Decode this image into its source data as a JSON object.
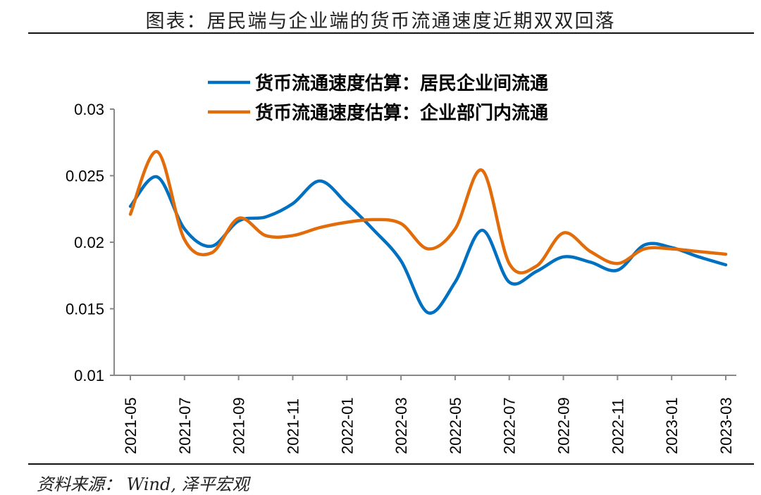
{
  "title": "图表：居民端与企业端的货币流通速度近期双双回落",
  "source": "资料来源：  Wind, 泽平宏观",
  "chart_data": {
    "type": "line",
    "title": "图表：居民端与企业端的货币流通速度近期双双回落",
    "xlabel": "",
    "ylabel": "",
    "x": [
      "2021-05",
      "2021-06",
      "2021-07",
      "2021-08",
      "2021-09",
      "2021-10",
      "2021-11",
      "2021-12",
      "2022-01",
      "2022-02",
      "2022-03",
      "2022-04",
      "2022-05",
      "2022-06",
      "2022-07",
      "2022-08",
      "2022-09",
      "2022-10",
      "2022-11",
      "2022-12",
      "2023-01",
      "2023-02",
      "2023-03"
    ],
    "x_tick_labels": [
      "2021-05",
      "2021-07",
      "2021-09",
      "2021-11",
      "2022-01",
      "2022-03",
      "2022-05",
      "2022-07",
      "2022-09",
      "2022-11",
      "2023-01",
      "2023-03"
    ],
    "ylim": [
      0.01,
      0.03
    ],
    "y_ticks": [
      "0.01",
      "0.015",
      "0.02",
      "0.025",
      "0.03"
    ],
    "grid": false,
    "legend_position": "top",
    "series": [
      {
        "name": "货币流通速度估算：居民企业间流通",
        "color": "#0070C0",
        "values": [
          0.0227,
          0.0249,
          0.021,
          0.0197,
          0.0216,
          0.0219,
          0.0229,
          0.0246,
          0.0229,
          0.0209,
          0.0186,
          0.0147,
          0.017,
          0.0209,
          0.017,
          0.0178,
          0.0189,
          0.0185,
          0.0179,
          0.0198,
          0.0196,
          0.0189,
          0.0183
        ]
      },
      {
        "name": "货币流通速度估算：企业部门内流通",
        "color": "#E36C0A",
        "values": [
          0.0221,
          0.0268,
          0.0202,
          0.0192,
          0.0218,
          0.0205,
          0.0205,
          0.0211,
          0.0215,
          0.0217,
          0.0214,
          0.0195,
          0.021,
          0.0254,
          0.0184,
          0.0182,
          0.0207,
          0.0193,
          0.0184,
          0.0195,
          0.0195,
          0.0193,
          0.0191
        ]
      }
    ]
  }
}
